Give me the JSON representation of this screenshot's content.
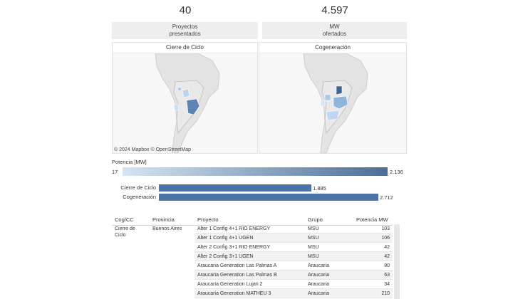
{
  "kpis": {
    "proyectos": {
      "value": "40",
      "label_line1": "Proyectos",
      "label_line2": "presentados"
    },
    "mw": {
      "value": "4.597",
      "label_line1": "MW",
      "label_line2": "ofertados"
    }
  },
  "maps": {
    "cierre": {
      "title": "Cierre de Ciclo"
    },
    "cogen": {
      "title": "Cogeneración"
    },
    "attribution": "© 2024 Mapbox  © OpenStreetMap"
  },
  "legend": {
    "title": "Potencia [MW]",
    "min": "17",
    "max": "2.136"
  },
  "bars": {
    "rows": [
      {
        "label": "Cierre de Ciclo",
        "value": 1885,
        "display": "1.885"
      },
      {
        "label": "Cogeneración",
        "value": 2712,
        "display": "2.712"
      }
    ],
    "colors": {
      "bar": "#4a73a7"
    }
  },
  "table": {
    "headers": [
      "Cog/CC",
      "Provincia",
      "Proyecto",
      "Grupo",
      "Potencia MW"
    ],
    "group": {
      "cogcc_line1": "Cierre de",
      "cogcc_line2": "Ciclo",
      "provincia": "Buenos Aires"
    },
    "rows": [
      {
        "proyecto": "Alter 1 Config 4+1 RIO ENERGY",
        "grupo": "MSU",
        "potencia": "103"
      },
      {
        "proyecto": "Alter 1 Config 4+1 UGEN",
        "grupo": "MSU",
        "potencia": "106"
      },
      {
        "proyecto": "Alter 2 Config 3+1 RIO ENERGY",
        "grupo": "MSU",
        "potencia": "42"
      },
      {
        "proyecto": "Alter 2 Config 3+1 UGEN",
        "grupo": "MSU",
        "potencia": "42"
      },
      {
        "proyecto": "Araucaria Generation Las Palmas A",
        "grupo": "Araucaria",
        "potencia": "80"
      },
      {
        "proyecto": "Araucaria Generation Las Palmas B",
        "grupo": "Araucaria",
        "potencia": "63"
      },
      {
        "proyecto": "Araucaria Generation Lujan 2",
        "grupo": "Araucaria",
        "potencia": "34"
      },
      {
        "proyecto": "Araucaria Generation MATHEU 3",
        "grupo": "Araucaria",
        "potencia": "210"
      }
    ]
  }
}
